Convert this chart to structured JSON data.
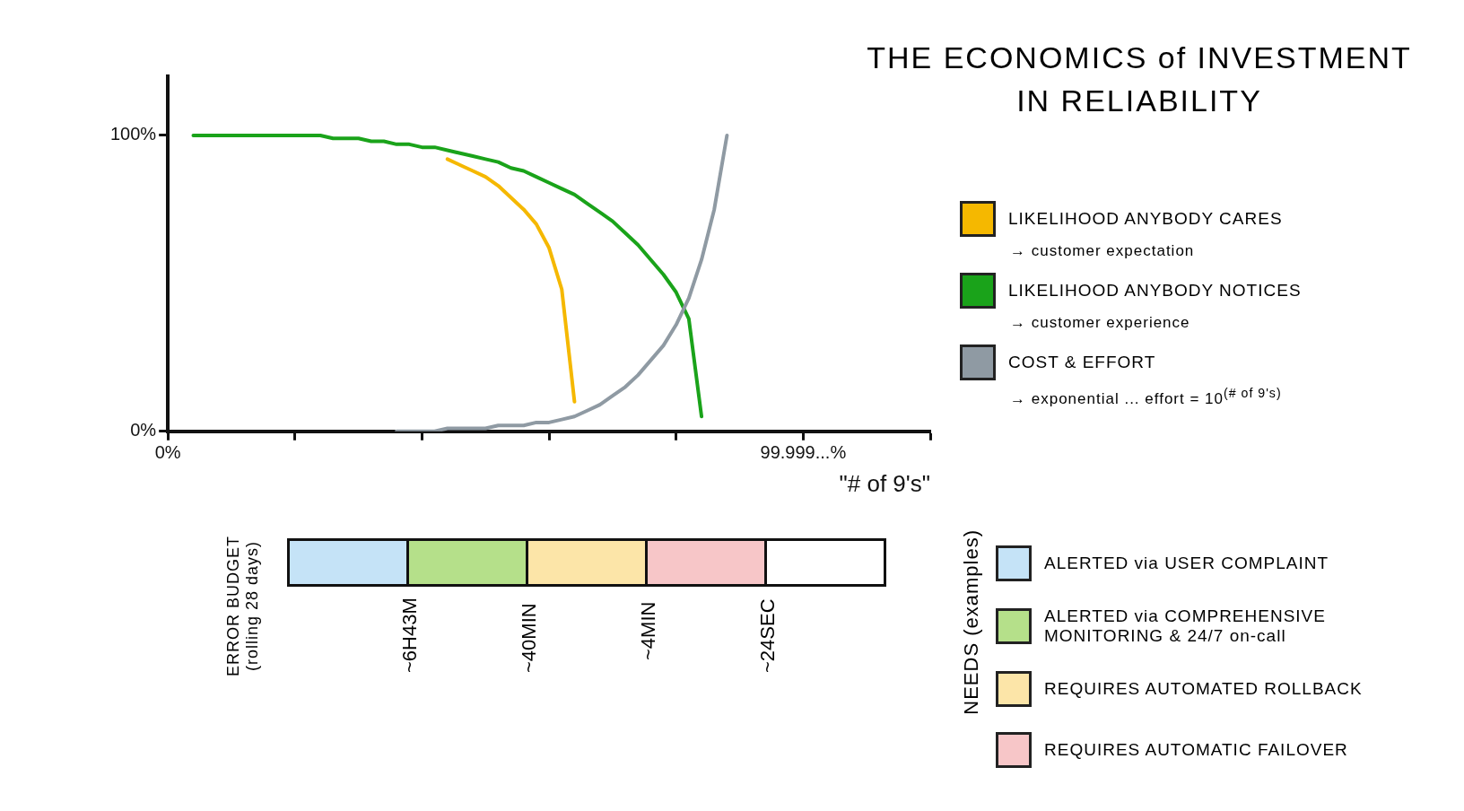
{
  "chart_data": [
    {
      "type": "line",
      "title": "THE ECONOMICS of INVESTMENT IN RELIABILITY",
      "xlabel": "\"# of 9's\"",
      "ylim": [
        0,
        120
      ],
      "categories": [
        "0%",
        null,
        null,
        null,
        null,
        null,
        null,
        null,
        null,
        null,
        null,
        null,
        null,
        null,
        null,
        null,
        null,
        null,
        null,
        null,
        null,
        null,
        null,
        null,
        null,
        null,
        null,
        null,
        null,
        null,
        null,
        null,
        null,
        null,
        null,
        null,
        null,
        null,
        null,
        null,
        null,
        null,
        null,
        null,
        null,
        null,
        null,
        null,
        null,
        null,
        "99.999...%",
        null,
        null,
        null,
        null,
        null,
        null,
        null,
        null,
        null,
        null
      ],
      "yticks": [
        {
          "value": 0,
          "label": "0%"
        },
        {
          "value": 100,
          "label": "100%"
        }
      ],
      "grid": false,
      "marker": "none",
      "legend": "right",
      "annotations": [
        "→ customer expectation",
        "→ customer experience",
        "→ exponential ... effort = 10$^{(# of 9's)}$"
      ],
      "series": [
        {
          "name": "LIKELIHOOD ANYBODY CARES",
          "color": "#f5b800",
          "values": [
            null,
            null,
            null,
            null,
            null,
            null,
            null,
            null,
            null,
            null,
            null,
            null,
            null,
            null,
            null,
            null,
            null,
            null,
            null,
            null,
            null,
            null,
            92,
            90,
            88,
            86,
            83,
            79,
            75,
            70,
            62,
            48,
            10,
            null,
            null,
            null,
            null,
            null,
            null,
            null,
            null,
            null,
            null,
            null,
            null,
            null,
            null,
            null,
            null,
            null,
            null,
            null,
            null,
            null,
            null,
            null,
            null,
            null,
            null,
            null,
            null
          ]
        },
        {
          "name": "LIKELIHOOD ANYBODY NOTICES",
          "color": "#1aa31a",
          "values": [
            null,
            null,
            100,
            100,
            100,
            100,
            100,
            100,
            100,
            100,
            100,
            100,
            100,
            99,
            99,
            99,
            98,
            98,
            97,
            97,
            96,
            96,
            95,
            94,
            93,
            92,
            91,
            89,
            88,
            86,
            84,
            82,
            80,
            77,
            74,
            71,
            67,
            63,
            58,
            53,
            47,
            38,
            5,
            null,
            null,
            null,
            null,
            null,
            null,
            null,
            null,
            null,
            null,
            null,
            null,
            null,
            null,
            null,
            null,
            null,
            null
          ]
        },
        {
          "name": "COST & EFFORT",
          "color": "#8f9aa3",
          "values": [
            null,
            null,
            null,
            null,
            null,
            null,
            null,
            null,
            null,
            null,
            null,
            null,
            null,
            null,
            null,
            null,
            null,
            null,
            0,
            0,
            0,
            0,
            1,
            1,
            1,
            1,
            2,
            2,
            2,
            3,
            3,
            4,
            5,
            7,
            9,
            12,
            15,
            19,
            24,
            29,
            36,
            45,
            58,
            75,
            100,
            null,
            null,
            null,
            null,
            null,
            null,
            null,
            null,
            null,
            null,
            null,
            null,
            null,
            null,
            null,
            null
          ]
        }
      ]
    },
    {
      "type": "other",
      "ylabel": "ERROR BUDGET (rolling 28 days)",
      "legend": "right",
      "legend_title": "NEEDS (examples)",
      "annotations": [
        "~6H43M",
        "~40MIN",
        "~4MIN",
        "~24SEC"
      ],
      "series": [
        {
          "name": "ALERTED via USER COMPLAINT",
          "color": "#c5e3f7"
        },
        {
          "name": "ALERTED via COMPREHENSIVE MONITORING & 24/7 on-call",
          "color": "#b5e08a"
        },
        {
          "name": "REQUIRES AUTOMATED ROLLBACK",
          "color": "#fce5a8"
        },
        {
          "name": "REQUIRES AUTOMATIC FAILOVER",
          "color": "#f7c6c8"
        },
        {
          "color": "#ffffff"
        }
      ]
    }
  ]
}
